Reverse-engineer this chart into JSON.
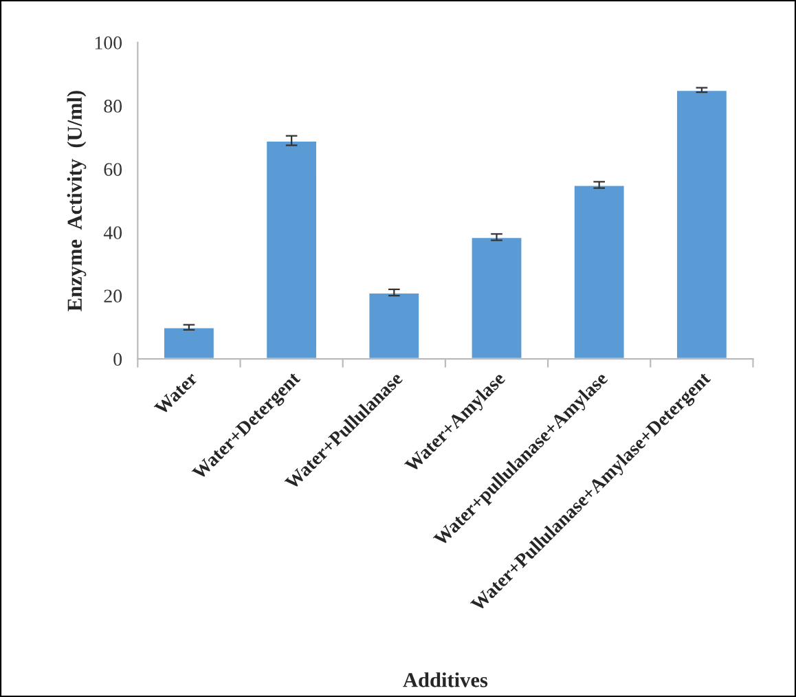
{
  "chart_data": {
    "type": "bar",
    "categories": [
      "Water",
      "Water+Detergent",
      "Water+Pullulanase",
      "Water+Amylase",
      "Water+pullulanase+Amylase",
      "Water+Pullulanase+Amylase+Detergent"
    ],
    "values": [
      10,
      69,
      21,
      38.5,
      55,
      85
    ],
    "errors": [
      0.8,
      1.5,
      1,
      1,
      1,
      0.7
    ],
    "color": "#5b9bd5",
    "xlabel": "Additives",
    "ylabel": "Enzyme  Activity  (U/ml)",
    "ylim": [
      0,
      100
    ],
    "yticks": [
      0,
      20,
      40,
      60,
      80,
      100
    ],
    "grid": false
  }
}
